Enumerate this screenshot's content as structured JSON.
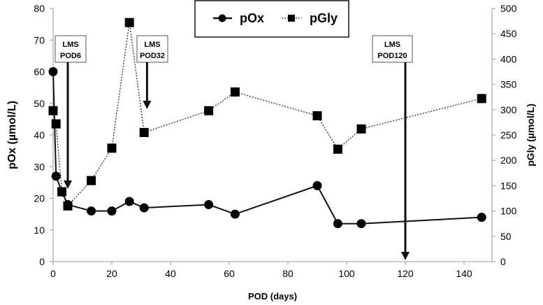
{
  "chart_data": {
    "type": "line",
    "xlabel": "POD (days)",
    "ylabel_left": "pOx  (µmol/L)",
    "ylabel_right": "pGly  (µmol/L)",
    "xlim": [
      0,
      150
    ],
    "xticks": [
      0,
      20,
      40,
      60,
      80,
      100,
      120,
      140
    ],
    "ylim_left": [
      0,
      80
    ],
    "yticks_left": [
      0,
      10,
      20,
      30,
      40,
      50,
      60,
      70,
      80
    ],
    "ylim_right": [
      0,
      500
    ],
    "yticks_right": [
      0,
      50,
      100,
      150,
      200,
      250,
      300,
      350,
      400,
      450,
      500
    ],
    "grid": false,
    "legend": "top-center",
    "series": [
      {
        "name": "pOx",
        "axis": "left",
        "style": "solid-circle",
        "x": [
          0,
          1,
          3,
          5,
          13,
          20,
          26,
          31,
          53,
          62,
          90,
          97,
          105,
          146
        ],
        "y": [
          60,
          27,
          22,
          18,
          16,
          16,
          19,
          17,
          18,
          15,
          24,
          12,
          12,
          14
        ]
      },
      {
        "name": "pGly",
        "axis": "right",
        "style": "dotted-square",
        "x": [
          0,
          1,
          3,
          5,
          13,
          20,
          26,
          31,
          53,
          62,
          90,
          97,
          105,
          146
        ],
        "y": [
          298,
          272,
          138,
          110,
          160,
          224,
          472,
          255,
          298,
          335,
          288,
          222,
          262,
          322
        ]
      }
    ],
    "annotations": [
      {
        "line1": "LMS",
        "line2": "POD6",
        "x": 5
      },
      {
        "line1": "LMS",
        "line2": "POD32",
        "x": 32
      },
      {
        "line1": "LMS",
        "line2": "POD120",
        "x": 120
      }
    ]
  }
}
